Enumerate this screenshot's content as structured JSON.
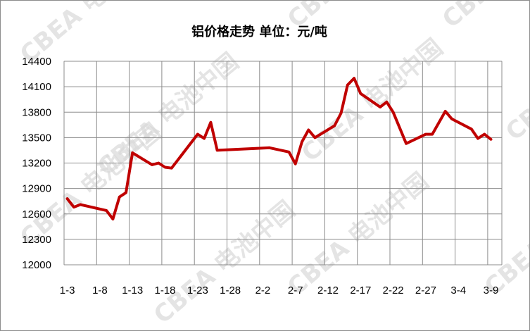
{
  "chart_data": {
    "type": "line",
    "title": "铝价格走势 单位：元/吨",
    "xlabel": "",
    "ylabel": "",
    "ylim": [
      12000,
      14400
    ],
    "yticks": [
      12000,
      12300,
      12600,
      12900,
      13200,
      13500,
      13800,
      14100,
      14400
    ],
    "xticks": [
      "1-3",
      "1-8",
      "1-13",
      "1-18",
      "1-23",
      "1-28",
      "2-2",
      "2-7",
      "2-12",
      "2-17",
      "2-22",
      "2-27",
      "3-4",
      "3-9"
    ],
    "grid": true,
    "legend": "none",
    "line_color": "#c00000",
    "watermark": "CBEA 电池中国",
    "series": [
      {
        "x": [
          "1-3",
          "1-4",
          "1-5",
          "1-9",
          "1-10",
          "1-11",
          "1-12",
          "1-13",
          "1-16",
          "1-17",
          "1-18",
          "1-19",
          "1-23",
          "1-24",
          "1-25",
          "1-26",
          "2-3",
          "2-6",
          "2-7",
          "2-8",
          "2-9",
          "2-10",
          "2-13",
          "2-14",
          "2-15",
          "2-16",
          "2-17",
          "2-20",
          "2-21",
          "2-22",
          "2-24",
          "2-27",
          "2-28",
          "3-2",
          "3-3",
          "3-6",
          "3-7",
          "3-8",
          "3-9"
        ],
        "values": [
          12780,
          12680,
          12710,
          12640,
          12540,
          12800,
          12850,
          13320,
          13180,
          13200,
          13150,
          13140,
          13540,
          13490,
          13680,
          13350,
          13380,
          13330,
          13190,
          13450,
          13590,
          13500,
          13640,
          13790,
          14120,
          14200,
          14020,
          13860,
          13920,
          13800,
          13430,
          13540,
          13540,
          13810,
          13720,
          13600,
          13490,
          13540,
          13480
        ]
      }
    ]
  }
}
